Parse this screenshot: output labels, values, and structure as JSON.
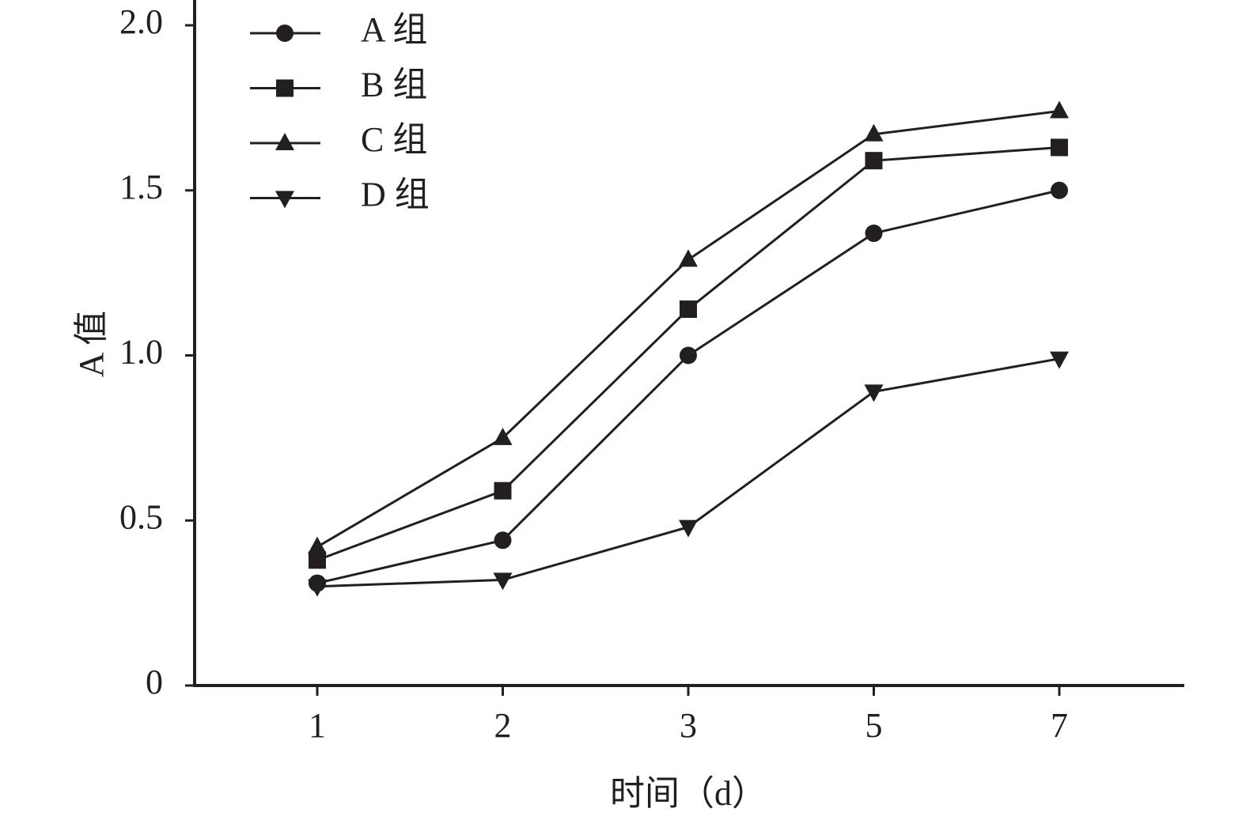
{
  "chart_data": {
    "type": "line",
    "x_label": "时间（d）",
    "y_label": "A 值",
    "categories": [
      "1",
      "2",
      "3",
      "5",
      "7"
    ],
    "series": [
      {
        "name": "A 组",
        "color": "#231f20",
        "marker": "circle",
        "values": [
          0.31,
          0.44,
          1.0,
          1.37,
          1.5
        ]
      },
      {
        "name": "B 组",
        "color": "#231f20",
        "marker": "square",
        "values": [
          0.38,
          0.59,
          1.14,
          1.59,
          1.63
        ]
      },
      {
        "name": "C 组",
        "color": "#231f20",
        "marker": "triangle-up",
        "values": [
          0.42,
          0.75,
          1.29,
          1.67,
          1.74
        ]
      },
      {
        "name": "D 组",
        "color": "#231f20",
        "marker": "triangle-down",
        "values": [
          0.3,
          0.32,
          0.48,
          0.89,
          0.99
        ]
      }
    ],
    "ylim": [
      0,
      2
    ],
    "yticks": [
      0,
      0.5,
      {
        "value": 1,
        "label": "1.0"
      },
      1.5,
      {
        "value": 2,
        "label": "2.0"
      }
    ],
    "grid": false,
    "legend": "upper left"
  }
}
